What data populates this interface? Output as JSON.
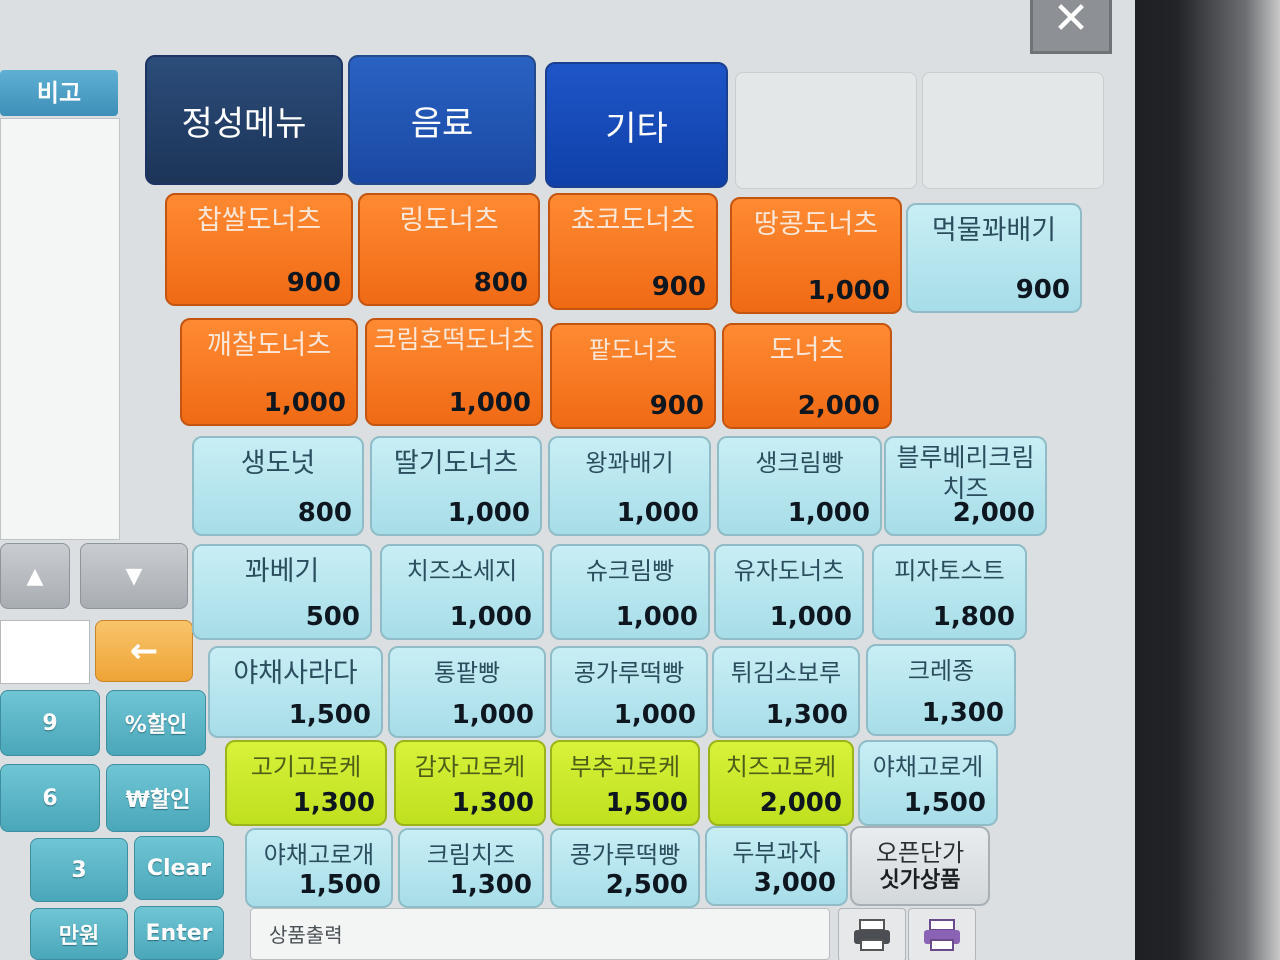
{
  "window": {
    "close_label": "✕"
  },
  "left_panel": {
    "column_header": "비고",
    "keypad": {
      "up_arrow": "▲",
      "down_arrow": "▼",
      "back_arrow": "←",
      "keys": [
        "9",
        "%할인",
        "6",
        "₩할인",
        "3",
        "Clear",
        "만원",
        "Enter"
      ]
    }
  },
  "tabs": [
    {
      "label": "정성메뉴",
      "active": true
    },
    {
      "label": "음료",
      "active": false
    },
    {
      "label": "기타",
      "active": false
    }
  ],
  "items": [
    {
      "name": "찹쌀도너츠",
      "price": "900",
      "color": "orange"
    },
    {
      "name": "링도너츠",
      "price": "800",
      "color": "orange"
    },
    {
      "name": "쵸코도너츠",
      "price": "900",
      "color": "orange"
    },
    {
      "name": "땅콩도너츠",
      "price": "1,000",
      "color": "orange"
    },
    {
      "name": "먹물꽈배기",
      "price": "900",
      "color": "light"
    },
    {
      "name": "깨찰도너츠",
      "price": "1,000",
      "color": "orange"
    },
    {
      "name": "크림호떡도너츠",
      "price": "1,000",
      "color": "orange"
    },
    {
      "name": "팥도너츠",
      "price": "900",
      "color": "orange"
    },
    {
      "name": "도너츠",
      "price": "2,000",
      "color": "orange"
    },
    {
      "name": "생도넛",
      "price": "800",
      "color": "light"
    },
    {
      "name": "딸기도너츠",
      "price": "1,000",
      "color": "light"
    },
    {
      "name": "왕꽈배기",
      "price": "1,000",
      "color": "light"
    },
    {
      "name": "생크림빵",
      "price": "1,000",
      "color": "light"
    },
    {
      "name": "블루베리크림치즈",
      "price": "2,000",
      "color": "light"
    },
    {
      "name": "꽈베기",
      "price": "500",
      "color": "light"
    },
    {
      "name": "치즈소세지",
      "price": "1,000",
      "color": "light"
    },
    {
      "name": "슈크림빵",
      "price": "1,000",
      "color": "light"
    },
    {
      "name": "유자도너츠",
      "price": "1,000",
      "color": "light"
    },
    {
      "name": "피자토스트",
      "price": "1,800",
      "color": "light"
    },
    {
      "name": "야채사라다",
      "price": "1,500",
      "color": "light"
    },
    {
      "name": "통팥빵",
      "price": "1,000",
      "color": "light"
    },
    {
      "name": "콩가루떡빵",
      "price": "1,000",
      "color": "light"
    },
    {
      "name": "튀김소보루",
      "price": "1,300",
      "color": "light"
    },
    {
      "name": "크레종",
      "price": "1,300",
      "color": "light"
    },
    {
      "name": "고기고로케",
      "price": "1,300",
      "color": "lime"
    },
    {
      "name": "감자고로케",
      "price": "1,300",
      "color": "lime"
    },
    {
      "name": "부추고로케",
      "price": "1,500",
      "color": "lime"
    },
    {
      "name": "치즈고로케",
      "price": "2,000",
      "color": "lime"
    },
    {
      "name": "야채고로게",
      "price": "1,500",
      "color": "light"
    },
    {
      "name": "야채고로개",
      "price": "1,500",
      "color": "light"
    },
    {
      "name": "크림치즈",
      "price": "1,300",
      "color": "light"
    },
    {
      "name": "콩가루떡빵",
      "price": "2,500",
      "color": "light"
    },
    {
      "name": "두부과자",
      "price": "3,000",
      "color": "light"
    },
    {
      "name": "오픈단가",
      "subtitle": "싯가상품",
      "color": "open"
    }
  ],
  "status": {
    "label": "상품출력"
  },
  "icons": {
    "printer": "printer-icon",
    "printer_alt": "printer-alt-icon"
  }
}
